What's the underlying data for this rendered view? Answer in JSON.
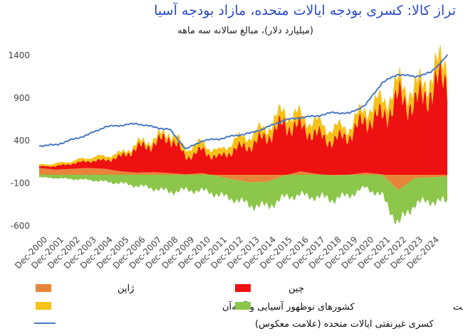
{
  "title": "تراز کالا: کسری بودجه ایالات متحده، مازاد بودجه آسیا",
  "subtitle": "(میلیارد دلار)، مبالغ سالانه سه ماهه",
  "chart_data": {
    "type": "area",
    "ylim": [
      -700,
      1500
    ],
    "y_ticks": [
      "1400",
      "900",
      "400",
      "-100",
      "-600"
    ],
    "y_tick_values": [
      1400,
      900,
      400,
      -100,
      -600
    ],
    "x_tick_labels": [
      "Dec-2000",
      "Dec-2001",
      "Dec-2002",
      "Dec-2003",
      "Dec-2004",
      "Dec-2005",
      "Dec-2006",
      "Dec-2007",
      "Dec-2008",
      "Dec-2009",
      "Dec-2010",
      "Dec-2011",
      "Dec-2012",
      "Dec-2013",
      "Dec-2014",
      "Dec-2015",
      "Dec-2016",
      "Dec-2017",
      "Dec-2018",
      "Dec-2019",
      "Dec-2020",
      "Dec-2021",
      "Dec-2022",
      "Dec-2023",
      "Dec-2024"
    ],
    "x_years": [
      2000,
      2001,
      2002,
      2003,
      2004,
      2005,
      2006,
      2007,
      2008,
      2009,
      2010,
      2011,
      2012,
      2013,
      2014,
      2015,
      2016,
      2017,
      2018,
      2019,
      2020,
      2021,
      2022,
      2023,
      2024,
      2025
    ],
    "series": [
      {
        "name": "ژاپن",
        "color": "#e8843a",
        "values": [
          80,
          60,
          70,
          80,
          70,
          40,
          25,
          30,
          20,
          5,
          20,
          -20,
          -60,
          -90,
          -80,
          -10,
          40,
          10,
          -10,
          0,
          25,
          5,
          -180,
          -40,
          -30,
          -20
        ]
      },
      {
        "name": "چین",
        "color": "#ee1111",
        "values": [
          20,
          40,
          60,
          80,
          100,
          170,
          290,
          330,
          430,
          200,
          270,
          200,
          300,
          350,
          460,
          600,
          520,
          460,
          400,
          470,
          620,
          680,
          900,
          830,
          1000,
          1160
        ]
      },
      {
        "name": "کشورهای نوظهور آسیایی و آسه‌آن",
        "color": "#f6c21a",
        "values": [
          20,
          30,
          30,
          40,
          50,
          40,
          50,
          60,
          60,
          100,
          90,
          70,
          110,
          120,
          110,
          150,
          130,
          140,
          140,
          100,
          140,
          180,
          160,
          170,
          170,
          230
        ]
      },
      {
        "name": "سایر کشورهای نوظهور، به استثنای صادرکنندگان نفت",
        "color": "#8cc64a",
        "values": [
          -30,
          -40,
          -50,
          -60,
          -80,
          -100,
          -130,
          -160,
          -200,
          -180,
          -190,
          -220,
          -230,
          -270,
          -290,
          -260,
          -240,
          -260,
          -280,
          -240,
          -150,
          -250,
          -400,
          -300,
          -280,
          -300
        ]
      },
      {
        "name": "کسری غیرنفتی ایالات متحده (علامت معکوس)",
        "color": "#4a78c2",
        "values": [
          340,
          350,
          410,
          470,
          560,
          580,
          600,
          560,
          530,
          300,
          400,
          420,
          460,
          490,
          560,
          640,
          670,
          690,
          730,
          720,
          820,
          1080,
          1180,
          1150,
          1200,
          1400
        ]
      }
    ]
  }
}
